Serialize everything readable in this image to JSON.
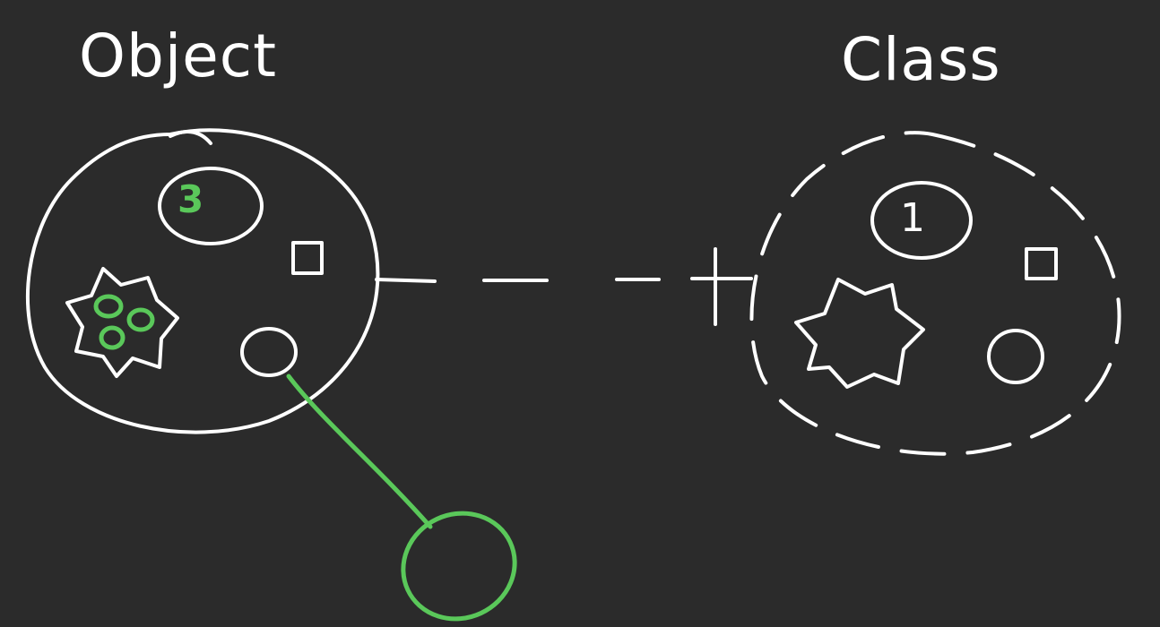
{
  "diagram": {
    "object": {
      "title": "Object",
      "count": "3"
    },
    "class": {
      "title": "Class",
      "count": "1"
    },
    "colors": {
      "background": "#2b2b2b",
      "stroke": "#ffffff",
      "highlight": "#5ac85a"
    }
  }
}
